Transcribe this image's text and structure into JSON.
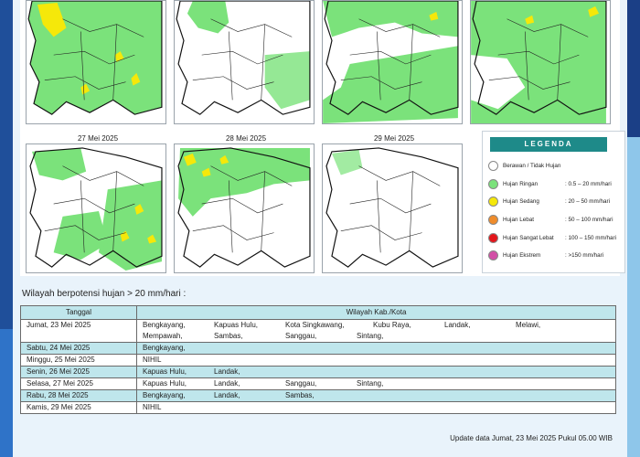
{
  "maps_top_row": [
    {
      "date": ""
    },
    {
      "date": ""
    },
    {
      "date": ""
    },
    {
      "date": ""
    }
  ],
  "maps_bottom_row": [
    {
      "date": "27 Mei 2025"
    },
    {
      "date": "28 Mei 2025"
    },
    {
      "date": "29 Mei 2025"
    }
  ],
  "legend": {
    "title": "LEGENDA",
    "items": [
      {
        "label": "Berawan / Tidak Hujan",
        "range": "",
        "color": "#ffffff"
      },
      {
        "label": "Hujan Ringan",
        "range": ": 0.5 – 20 mm/hari",
        "color": "#7be27b"
      },
      {
        "label": "Hujan Sedang",
        "range": ": 20 – 50 mm/hari",
        "color": "#f5e80a"
      },
      {
        "label": "Hujan Lebat",
        "range": ": 50 – 100 mm/hari",
        "color": "#ef8c2b"
      },
      {
        "label": "Hujan Sangat Lebat",
        "range": ": 100 – 150 mm/hari",
        "color": "#e3161b"
      },
      {
        "label": "Hujan Ekstrem",
        "range": ": >150 mm/hari",
        "color": "#d24fa6"
      }
    ]
  },
  "section_title": "Wilayah berpotensi hujan > 20 mm/hari :",
  "table": {
    "headers": [
      "Tanggal",
      "Wilayah Kab./Kota"
    ],
    "rows": [
      {
        "date": "Jumat, 23 Mei 2025",
        "regions": [
          "Bengkayang,",
          "Kapuas Hulu,",
          "Kota Singkawang,",
          "Kubu Raya,",
          "Landak,",
          "Melawi,",
          "Mempawah,",
          "Sambas,",
          "Sanggau,",
          "Sintang,"
        ]
      },
      {
        "date": "Sabtu, 24 Mei 2025",
        "regions": [
          "Bengkayang,"
        ]
      },
      {
        "date": "Minggu, 25 Mei 2025",
        "regions": [
          "NIHIL"
        ]
      },
      {
        "date": "Senin, 26 Mei 2025",
        "regions": [
          "Kapuas Hulu,",
          "Landak,"
        ]
      },
      {
        "date": "Selasa, 27 Mei 2025",
        "regions": [
          "Kapuas Hulu,",
          "Landak,",
          "Sanggau,",
          "Sintang,"
        ]
      },
      {
        "date": "Rabu, 28 Mei 2025",
        "regions": [
          "Bengkayang,",
          "Landak,",
          "Sambas,"
        ]
      },
      {
        "date": "Kamis, 29 Mei 2025",
        "regions": [
          "NIHIL"
        ]
      }
    ]
  },
  "footer": "Update data Jumat, 23 Mei 2025 Pukul 05.00 WIB"
}
